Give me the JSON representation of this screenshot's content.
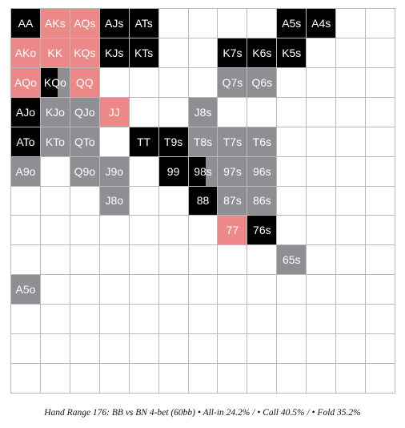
{
  "colors": {
    "allin": "#000000",
    "call": "#ec8888",
    "fold": "#8f8f93",
    "empty": "#ffffff",
    "grid": "#b9b9b9"
  },
  "grid": {
    "size": 13,
    "cells": [
      {
        "r": 0,
        "c": 0,
        "label": "AA",
        "action": "allin"
      },
      {
        "r": 0,
        "c": 1,
        "label": "AKs",
        "action": "call"
      },
      {
        "r": 0,
        "c": 2,
        "label": "AQs",
        "action": "call"
      },
      {
        "r": 0,
        "c": 3,
        "label": "AJs",
        "action": "allin"
      },
      {
        "r": 0,
        "c": 4,
        "label": "ATs",
        "action": "allin"
      },
      {
        "r": 0,
        "c": 9,
        "label": "A5s",
        "action": "allin"
      },
      {
        "r": 0,
        "c": 10,
        "label": "A4s",
        "action": "allin"
      },
      {
        "r": 1,
        "c": 0,
        "label": "AKo",
        "action": "call"
      },
      {
        "r": 1,
        "c": 1,
        "label": "KK",
        "action": "call"
      },
      {
        "r": 1,
        "c": 2,
        "label": "KQs",
        "action": "call"
      },
      {
        "r": 1,
        "c": 3,
        "label": "KJs",
        "action": "allin"
      },
      {
        "r": 1,
        "c": 4,
        "label": "KTs",
        "action": "allin"
      },
      {
        "r": 1,
        "c": 7,
        "label": "K7s",
        "action": "allin"
      },
      {
        "r": 1,
        "c": 8,
        "label": "K6s",
        "action": "allin"
      },
      {
        "r": 1,
        "c": 9,
        "label": "K5s",
        "action": "allin"
      },
      {
        "r": 2,
        "c": 0,
        "label": "AQo",
        "action": "call"
      },
      {
        "r": 2,
        "c": 1,
        "label": "KQo",
        "action": "allin",
        "secondary": "fold",
        "split": 0.6
      },
      {
        "r": 2,
        "c": 2,
        "label": "QQ",
        "action": "call"
      },
      {
        "r": 2,
        "c": 7,
        "label": "Q7s",
        "action": "fold"
      },
      {
        "r": 2,
        "c": 8,
        "label": "Q6s",
        "action": "fold"
      },
      {
        "r": 3,
        "c": 0,
        "label": "AJo",
        "action": "allin"
      },
      {
        "r": 3,
        "c": 1,
        "label": "KJo",
        "action": "fold"
      },
      {
        "r": 3,
        "c": 2,
        "label": "QJo",
        "action": "fold"
      },
      {
        "r": 3,
        "c": 3,
        "label": "JJ",
        "action": "call"
      },
      {
        "r": 3,
        "c": 6,
        "label": "J8s",
        "action": "fold"
      },
      {
        "r": 4,
        "c": 0,
        "label": "ATo",
        "action": "allin"
      },
      {
        "r": 4,
        "c": 1,
        "label": "KTo",
        "action": "fold"
      },
      {
        "r": 4,
        "c": 2,
        "label": "QTo",
        "action": "fold"
      },
      {
        "r": 4,
        "c": 4,
        "label": "TT",
        "action": "allin"
      },
      {
        "r": 4,
        "c": 5,
        "label": "T9s",
        "action": "allin"
      },
      {
        "r": 4,
        "c": 6,
        "label": "T8s",
        "action": "fold"
      },
      {
        "r": 4,
        "c": 7,
        "label": "T7s",
        "action": "fold"
      },
      {
        "r": 4,
        "c": 8,
        "label": "T6s",
        "action": "fold"
      },
      {
        "r": 5,
        "c": 0,
        "label": "A9o",
        "action": "fold"
      },
      {
        "r": 5,
        "c": 2,
        "label": "Q9o",
        "action": "fold"
      },
      {
        "r": 5,
        "c": 3,
        "label": "J9o",
        "action": "fold"
      },
      {
        "r": 5,
        "c": 5,
        "label": "99",
        "action": "allin"
      },
      {
        "r": 5,
        "c": 6,
        "label": "98s",
        "action": "allin",
        "secondary": "fold",
        "split": 0.6
      },
      {
        "r": 5,
        "c": 7,
        "label": "97s",
        "action": "fold"
      },
      {
        "r": 5,
        "c": 8,
        "label": "96s",
        "action": "fold"
      },
      {
        "r": 6,
        "c": 3,
        "label": "J8o",
        "action": "fold"
      },
      {
        "r": 6,
        "c": 6,
        "label": "88",
        "action": "allin"
      },
      {
        "r": 6,
        "c": 7,
        "label": "87s",
        "action": "fold"
      },
      {
        "r": 6,
        "c": 8,
        "label": "86s",
        "action": "fold"
      },
      {
        "r": 7,
        "c": 7,
        "label": "77",
        "action": "call"
      },
      {
        "r": 7,
        "c": 8,
        "label": "76s",
        "action": "allin"
      },
      {
        "r": 8,
        "c": 9,
        "label": "65s",
        "action": "fold"
      },
      {
        "r": 9,
        "c": 0,
        "label": "A5o",
        "action": "fold"
      }
    ]
  },
  "caption": "Hand Range 176: BB vs BN 4-bet (60bb) • All-in 24.2% / • Call 40.5% / • Fold 35.2%"
}
